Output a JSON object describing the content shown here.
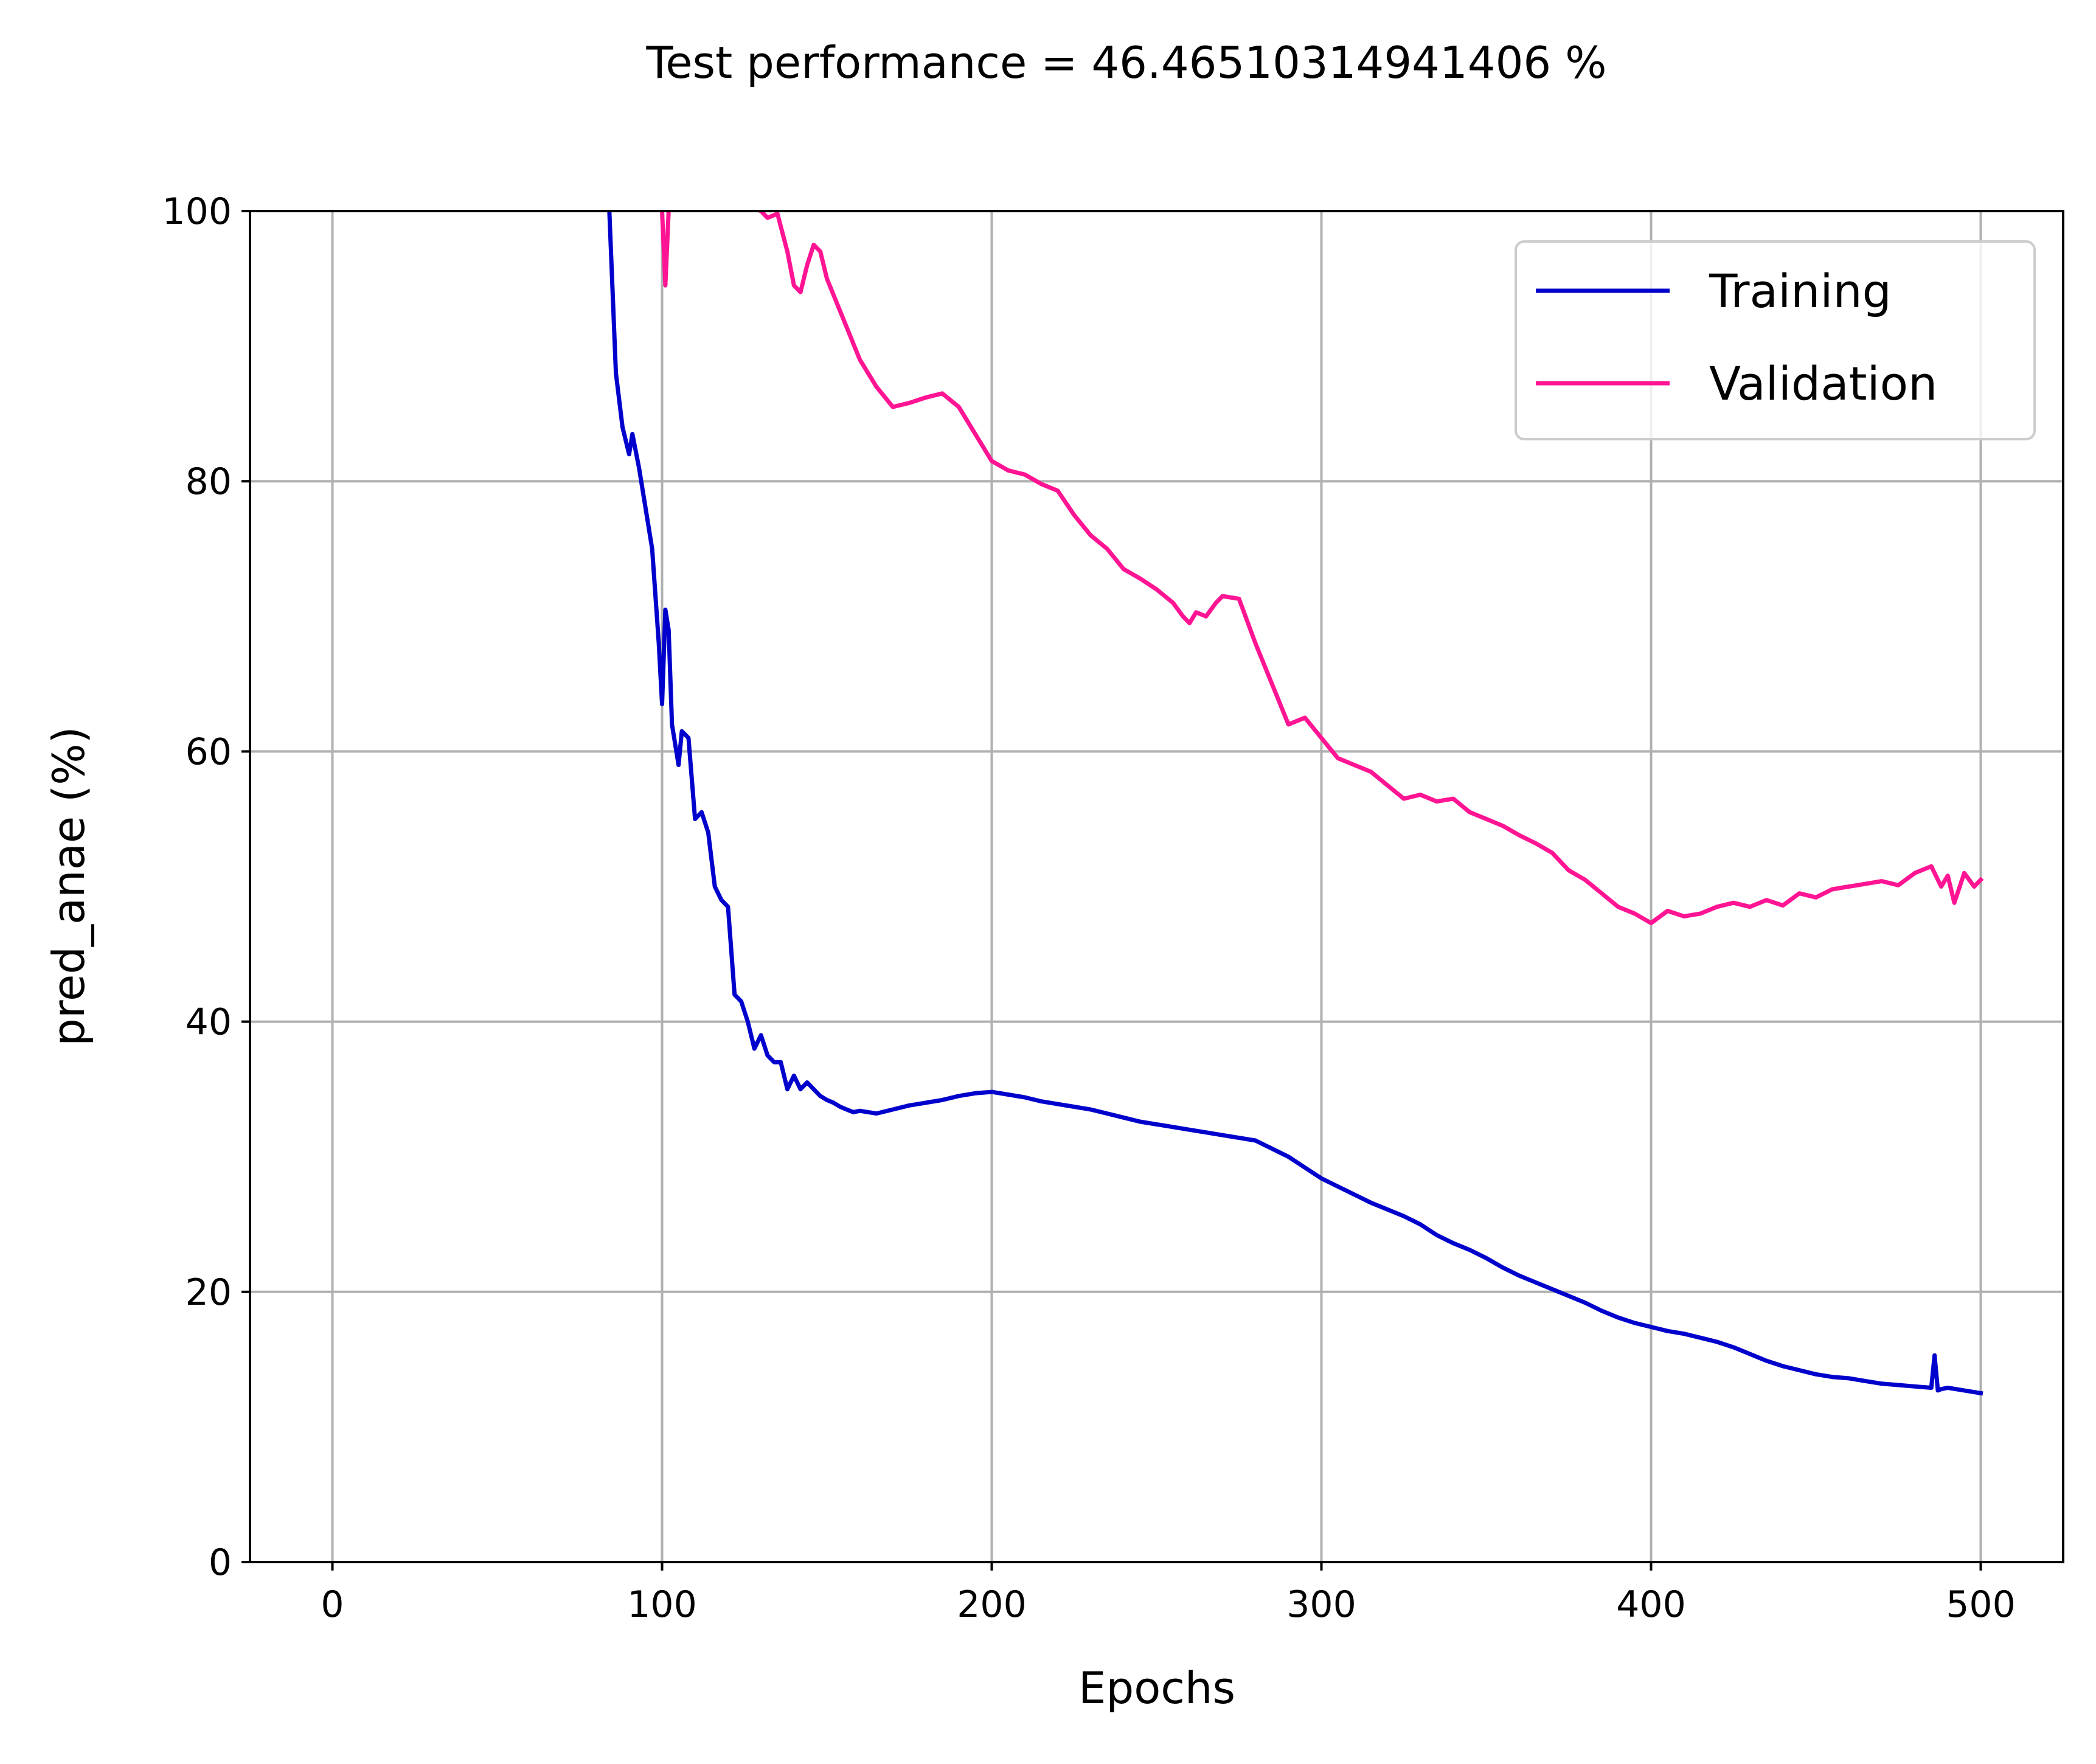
{
  "chart_data": {
    "type": "line",
    "title": "Test performance = 46.46510314941406 %",
    "xlabel": "Epochs",
    "ylabel": "pred_anae (%)",
    "xlim": [
      -25,
      525
    ],
    "ylim": [
      0,
      100
    ],
    "xticks": [
      0,
      100,
      200,
      300,
      400,
      500
    ],
    "yticks": [
      0,
      20,
      40,
      60,
      80,
      100
    ],
    "grid": true,
    "legend_position": "top-right",
    "series": [
      {
        "name": "Training",
        "color": "#0000cd",
        "x": [
          84,
          86,
          88,
          90,
          91,
          93,
          95,
          97,
          99,
          100,
          101,
          102,
          103,
          105,
          106,
          108,
          110,
          112,
          114,
          116,
          118,
          120,
          122,
          124,
          126,
          128,
          130,
          132,
          134,
          136,
          138,
          140,
          142,
          144,
          146,
          148,
          150,
          152,
          154,
          156,
          158,
          160,
          165,
          170,
          175,
          180,
          185,
          190,
          195,
          200,
          205,
          210,
          215,
          220,
          225,
          230,
          235,
          240,
          245,
          250,
          255,
          260,
          265,
          270,
          275,
          280,
          285,
          290,
          295,
          300,
          305,
          310,
          315,
          320,
          325,
          330,
          335,
          340,
          345,
          350,
          355,
          360,
          365,
          370,
          375,
          380,
          385,
          390,
          395,
          400,
          405,
          410,
          415,
          420,
          425,
          430,
          435,
          440,
          445,
          450,
          455,
          460,
          465,
          470,
          475,
          480,
          485,
          486,
          487,
          488,
          490,
          495,
          500
        ],
        "y": [
          100,
          88,
          84,
          82,
          83.5,
          81,
          78,
          75,
          68,
          63.5,
          70.5,
          69,
          62,
          59,
          61.5,
          61,
          55,
          55.5,
          54,
          50,
          49,
          48.5,
          42,
          41.5,
          40,
          38,
          39,
          37.5,
          37,
          37,
          35,
          36,
          35,
          35.5,
          35,
          34.5,
          34.2,
          34,
          33.7,
          33.5,
          33.3,
          33.4,
          33.2,
          33.5,
          33.8,
          34,
          34.2,
          34.5,
          34.7,
          34.8,
          34.6,
          34.4,
          34.1,
          33.9,
          33.7,
          33.5,
          33.2,
          32.9,
          32.6,
          32.4,
          32.2,
          32,
          31.8,
          31.6,
          31.4,
          31.2,
          30.6,
          30,
          29.2,
          28.4,
          27.8,
          27.2,
          26.6,
          26.1,
          25.6,
          25,
          24.2,
          23.6,
          23.1,
          22.5,
          21.8,
          21.2,
          20.7,
          20.2,
          19.7,
          19.2,
          18.6,
          18.1,
          17.7,
          17.4,
          17.1,
          16.9,
          16.6,
          16.3,
          15.9,
          15.4,
          14.9,
          14.5,
          14.2,
          13.9,
          13.7,
          13.6,
          13.4,
          13.2,
          13.1,
          13,
          12.9,
          15.3,
          12.7,
          12.8,
          12.9,
          12.7,
          12.5
        ]
      },
      {
        "name": "Validation",
        "color": "#ff1493",
        "x": [
          100,
          101,
          102,
          105,
          110,
          115,
          120,
          125,
          130,
          132,
          135,
          138,
          140,
          142,
          144,
          146,
          148,
          150,
          155,
          160,
          165,
          170,
          175,
          180,
          185,
          190,
          195,
          200,
          205,
          210,
          215,
          220,
          225,
          230,
          235,
          240,
          245,
          250,
          255,
          258,
          260,
          262,
          265,
          268,
          270,
          275,
          280,
          285,
          290,
          295,
          300,
          305,
          310,
          315,
          320,
          325,
          330,
          335,
          340,
          345,
          350,
          355,
          360,
          365,
          370,
          375,
          380,
          385,
          390,
          395,
          400,
          405,
          410,
          415,
          420,
          425,
          430,
          435,
          440,
          445,
          450,
          455,
          460,
          465,
          470,
          475,
          480,
          485,
          488,
          490,
          492,
          495,
          498,
          500
        ],
        "y": [
          100,
          94.5,
          100,
          101,
          102,
          102,
          101.5,
          100.5,
          100,
          99.5,
          99.8,
          97,
          94.5,
          94,
          96,
          97.5,
          97,
          95,
          92,
          89,
          87,
          85.5,
          85.8,
          86.2,
          86.5,
          85.5,
          83.5,
          81.5,
          80.8,
          80.5,
          79.8,
          79.3,
          77.5,
          76,
          75,
          73.5,
          72.8,
          72,
          71,
          70,
          69.5,
          70.3,
          70,
          71,
          71.5,
          71.3,
          68,
          65,
          62,
          62.5,
          61,
          59.5,
          59,
          58.5,
          57.5,
          56.5,
          56.8,
          56.3,
          56.5,
          55.5,
          55,
          54.5,
          53.8,
          53.2,
          52.5,
          51.2,
          50.5,
          49.5,
          48.5,
          48,
          47.3,
          48.2,
          47.8,
          48,
          48.5,
          48.8,
          48.5,
          49,
          48.6,
          49.5,
          49.2,
          49.8,
          50,
          50.2,
          50.4,
          50.1,
          51,
          51.5,
          50,
          50.8,
          48.8,
          51,
          50,
          50.5
        ]
      }
    ]
  }
}
